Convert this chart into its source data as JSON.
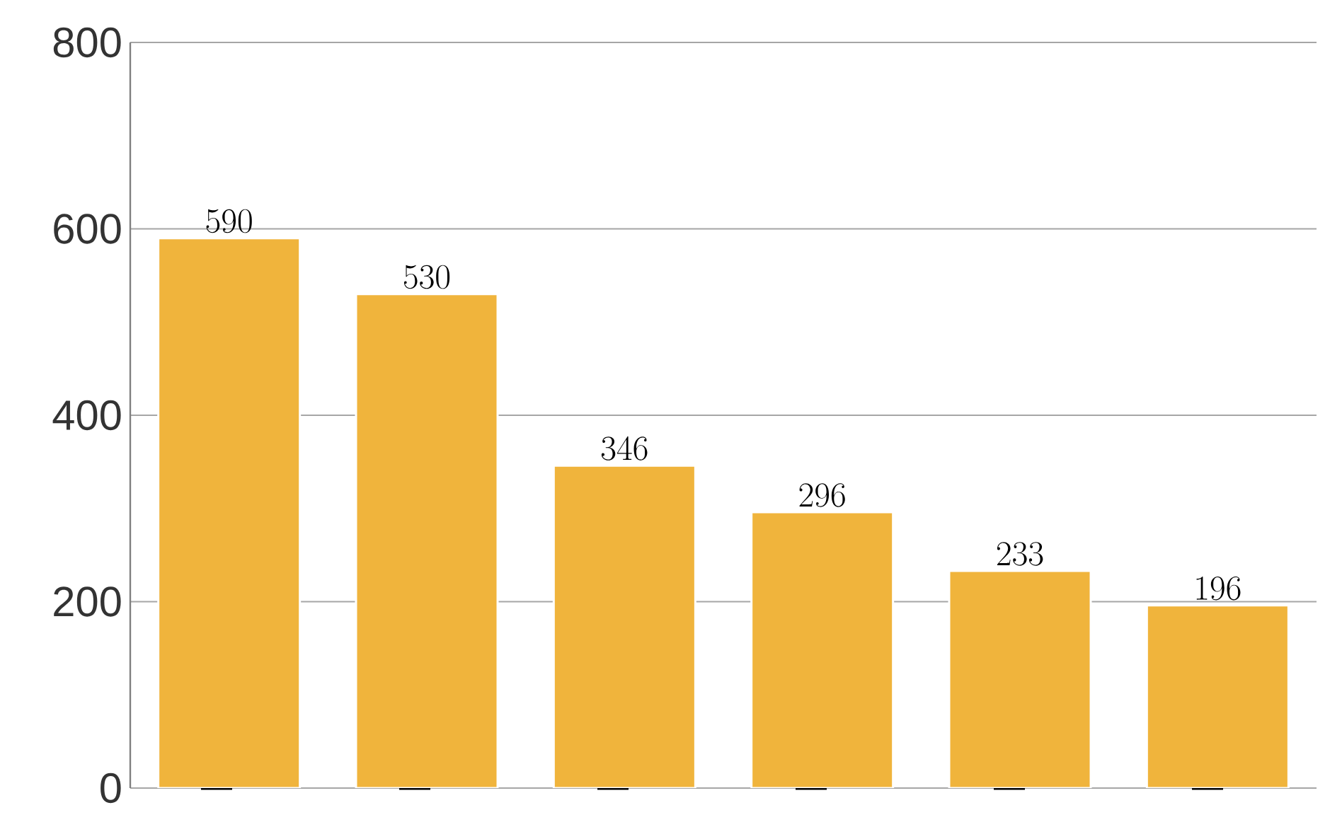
{
  "chart_data": {
    "type": "bar",
    "categories": [
      null,
      null,
      null,
      null,
      null,
      null
    ],
    "values": [
      590,
      530,
      346,
      296,
      233,
      196
    ],
    "color": "#f0b43c",
    "ylim": [
      0,
      800
    ],
    "yticks": [
      0,
      200,
      400,
      600,
      800
    ],
    "grid": "y",
    "data_labels": true
  }
}
